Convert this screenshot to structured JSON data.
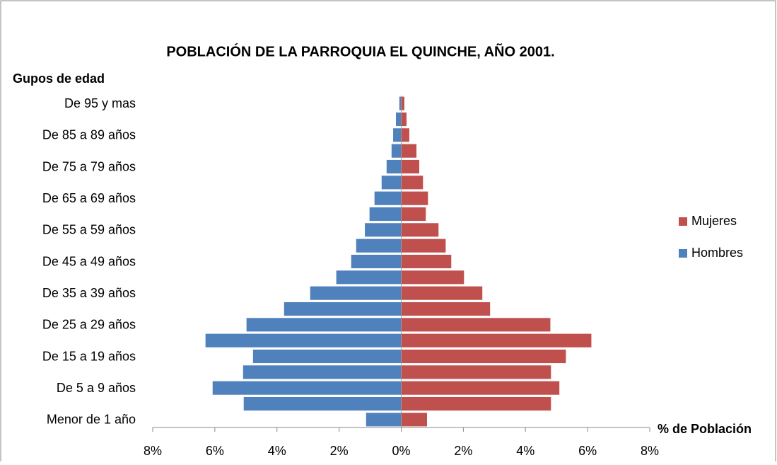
{
  "chart_data": {
    "type": "pyramid",
    "title": "POBLACIÓN DE LA PARROQUIA EL QUINCHE, AÑO 2001.",
    "y_label": "Gupos de edad",
    "x_label": "% de Población",
    "categories": [
      "Menor de 1 año",
      null,
      "De 5 a 9 años",
      null,
      "De 15 a 19 años",
      null,
      "De 25 a 29 años",
      null,
      "De 35 a 39 años",
      null,
      "De 45 a 49 años",
      null,
      "De 55 a 59 años",
      null,
      "De 65 a 69 años",
      null,
      "De 75 a 79 años",
      null,
      "De 85 a 89 años",
      null,
      "De 95 y mas"
    ],
    "series": [
      {
        "name": "Mujeres",
        "color": "#c0504d",
        "values": [
          0.84,
          4.83,
          5.1,
          4.83,
          5.31,
          6.13,
          4.81,
          2.87,
          2.62,
          2.03,
          1.62,
          1.44,
          1.21,
          0.8,
          0.87,
          0.71,
          0.59,
          0.5,
          0.27,
          0.18,
          0.11
        ]
      },
      {
        "name": "Hombres",
        "color": "#4f81bd",
        "values": [
          -1.14,
          -5.08,
          -6.08,
          -5.1,
          -4.78,
          -6.31,
          -4.99,
          -3.78,
          -2.94,
          -2.1,
          -1.62,
          -1.46,
          -1.18,
          -1.03,
          -0.87,
          -0.64,
          -0.48,
          -0.32,
          -0.27,
          -0.18,
          -0.07
        ]
      }
    ],
    "xlim": [
      -8,
      8
    ],
    "xticks": [
      {
        "value": -8,
        "label": "8%"
      },
      {
        "value": -6,
        "label": "6%"
      },
      {
        "value": -4,
        "label": "4%"
      },
      {
        "value": -2,
        "label": "2%"
      },
      {
        "value": 0,
        "label": "0%"
      },
      {
        "value": 2,
        "label": "2%"
      },
      {
        "value": 4,
        "label": "4%"
      },
      {
        "value": 6,
        "label": "6%"
      },
      {
        "value": 8,
        "label": "8%"
      }
    ],
    "legend": "right"
  }
}
